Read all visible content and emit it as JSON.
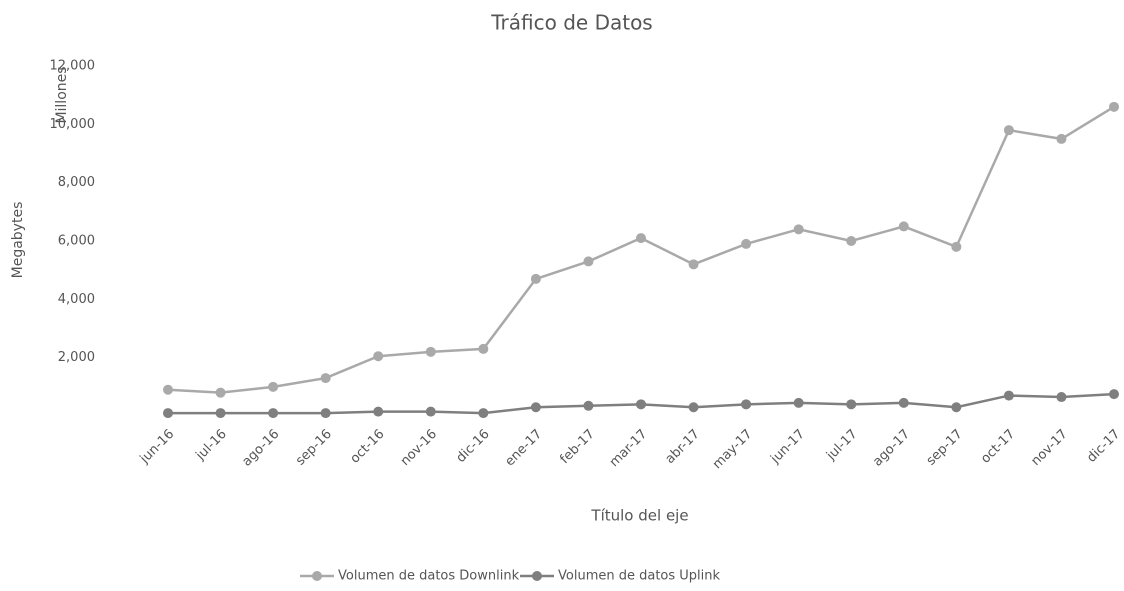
{
  "chart_data": {
    "type": "line",
    "title": "Tráfico de Datos",
    "y_label": "Megabytes",
    "y_unit_label": "Millones",
    "x_label": "Título del eje",
    "categories": [
      "jun-16",
      "jul-16",
      "ago-16",
      "sep-16",
      "oct-16",
      "nov-16",
      "dic-16",
      "ene-17",
      "feb-17",
      "mar-17",
      "abr-17",
      "may-17",
      "jun-17",
      "jul-17",
      "ago-17",
      "sep-17",
      "oct-17",
      "nov-17",
      "dic-17"
    ],
    "series": [
      {
        "name": "Volumen de datos Downlink",
        "color": "#a9a9a9",
        "values": [
          900,
          800,
          1000,
          1300,
          2050,
          2200,
          2300,
          4700,
          5300,
          6100,
          5200,
          5900,
          6400,
          6000,
          6500,
          5800,
          9800,
          9500,
          10600
        ]
      },
      {
        "name": "Volumen de datos Uplink",
        "color": "#7f7f7f",
        "values": [
          100,
          100,
          100,
          100,
          150,
          150,
          100,
          300,
          350,
          400,
          300,
          400,
          450,
          400,
          450,
          300,
          700,
          650,
          750
        ]
      }
    ],
    "ylim": [
      0,
      12000
    ],
    "yticks": [
      {
        "value": 2000,
        "label": "2,000"
      },
      {
        "value": 4000,
        "label": "4,000"
      },
      {
        "value": 6000,
        "label": "6,000"
      },
      {
        "value": 8000,
        "label": "8,000"
      },
      {
        "value": 10000,
        "label": "10,000"
      },
      {
        "value": 12000,
        "label": "12,000"
      }
    ],
    "grid": false,
    "legend": "bottom"
  }
}
